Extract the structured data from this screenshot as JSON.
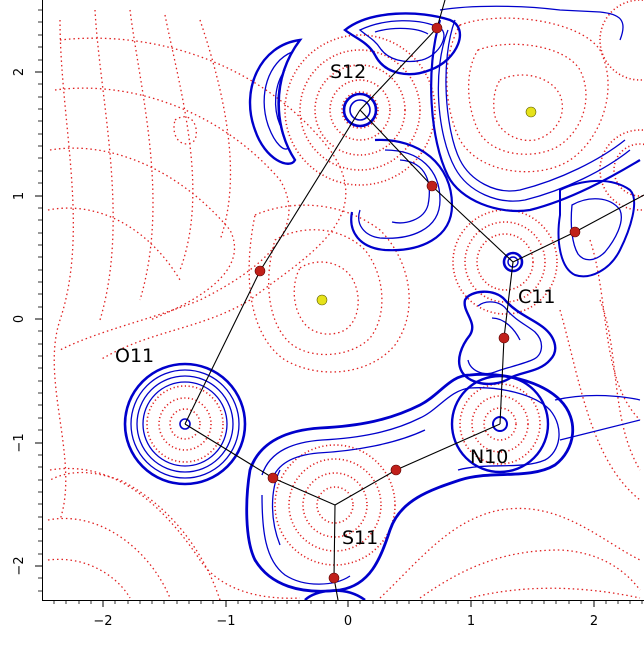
{
  "figure": {
    "x_ticks": [
      "−2",
      "−1",
      "0",
      "1",
      "2"
    ],
    "y_ticks": [
      "2",
      "1",
      "0",
      "−1",
      "−2"
    ]
  },
  "atoms": [
    {
      "id": "s12",
      "label": "S12"
    },
    {
      "id": "c11",
      "label": "C11"
    },
    {
      "id": "o11",
      "label": "O11"
    },
    {
      "id": "n10",
      "label": "N10"
    },
    {
      "id": "s11",
      "label": "S11"
    }
  ],
  "colors": {
    "positive_contour": "#0000cc",
    "negative_contour": "#e02020",
    "bond_path": "#000000",
    "bond_critical_point": "#c0201a",
    "ring_critical_point": "#e6e21a"
  }
}
